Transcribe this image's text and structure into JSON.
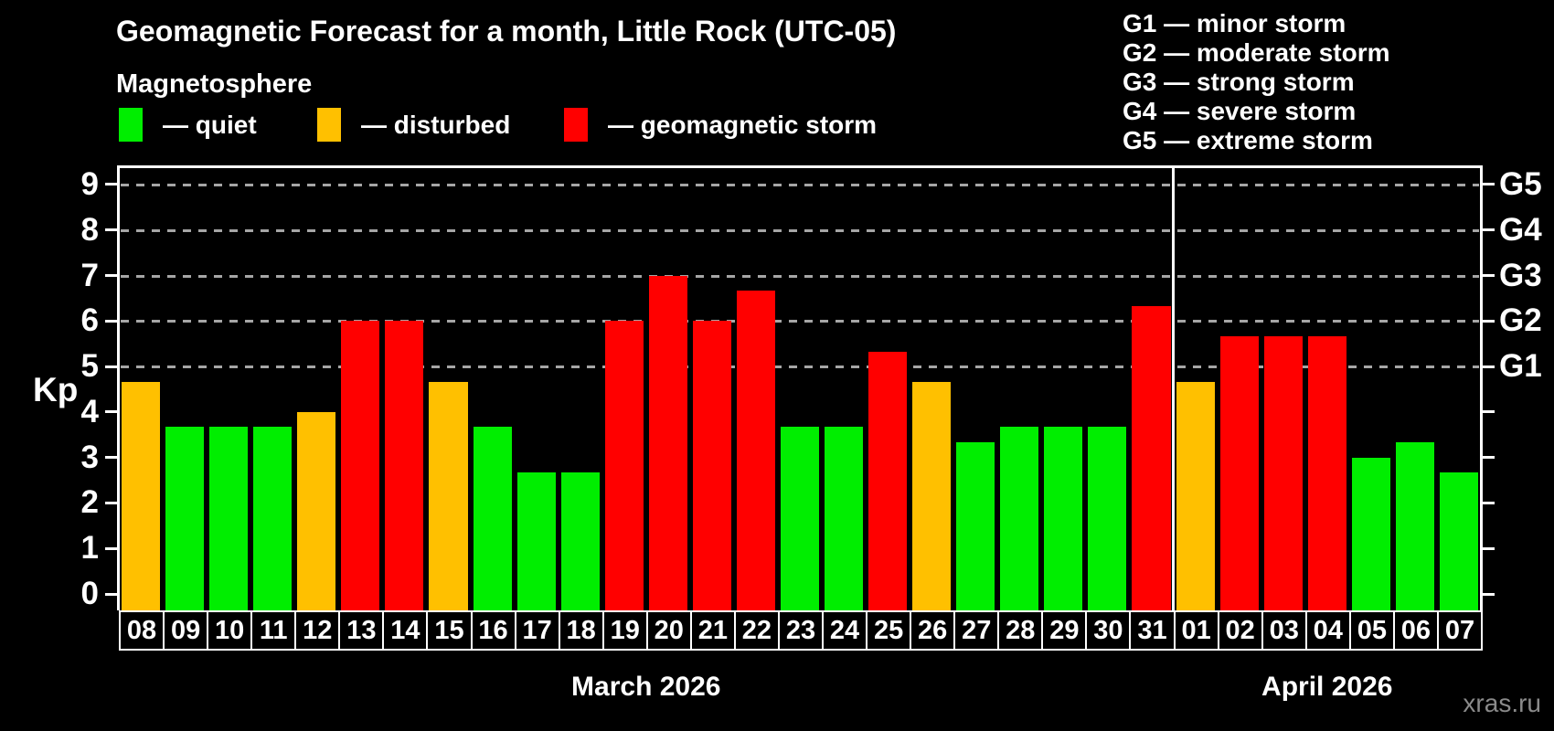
{
  "header": {
    "title": "Geomagnetic Forecast for a month, Little Rock (UTC-05)",
    "subtitle": "Magnetosphere"
  },
  "legend": {
    "items": [
      {
        "key": "quiet",
        "label": "— quiet",
        "color": "#00ee00",
        "x": 130
      },
      {
        "key": "disturbed",
        "label": "— disturbed",
        "color": "#ffc000",
        "x": 347
      },
      {
        "key": "storm",
        "label": "— geomagnetic storm",
        "color": "#ff0000",
        "x": 617
      }
    ]
  },
  "g_scale_legend": {
    "lines": [
      "G1 — minor storm",
      "G2 — moderate storm",
      "G3 — strong storm",
      "G4 — severe storm",
      "G5 — extreme storm"
    ]
  },
  "axes": {
    "y_label": "Kp",
    "y_ticks": [
      "0",
      "1",
      "2",
      "3",
      "4",
      "5",
      "6",
      "7",
      "8",
      "9"
    ],
    "g_labels": [
      {
        "kp": 5,
        "label": "G1"
      },
      {
        "kp": 6,
        "label": "G2"
      },
      {
        "kp": 7,
        "label": "G3"
      },
      {
        "kp": 8,
        "label": "G4"
      },
      {
        "kp": 9,
        "label": "G5"
      }
    ]
  },
  "months": [
    {
      "label": "March 2026",
      "days": 24
    },
    {
      "label": "April 2026",
      "days": 7
    }
  ],
  "watermark": "xras.ru",
  "chart_data": {
    "type": "bar",
    "title": "Geomagnetic Forecast for a month, Little Rock (UTC-05)",
    "ylabel": "Kp",
    "ylim": [
      0,
      9
    ],
    "gridlines_at": [
      5,
      6,
      7,
      8,
      9
    ],
    "grid": "dashed horizontal at storm levels only",
    "legend_position": "top-left",
    "categories": [
      "08",
      "09",
      "10",
      "11",
      "12",
      "13",
      "14",
      "15",
      "16",
      "17",
      "18",
      "19",
      "20",
      "21",
      "22",
      "23",
      "24",
      "25",
      "26",
      "27",
      "28",
      "29",
      "30",
      "31",
      "01",
      "02",
      "03",
      "04",
      "05",
      "06",
      "07"
    ],
    "values": [
      4.67,
      3.67,
      3.67,
      3.67,
      4.0,
      6.0,
      6.0,
      4.67,
      3.67,
      2.67,
      2.67,
      6.0,
      7.0,
      6.0,
      6.67,
      3.67,
      3.67,
      5.33,
      4.67,
      3.33,
      3.67,
      3.67,
      3.67,
      6.33,
      4.67,
      5.67,
      5.67,
      5.67,
      3.0,
      3.33,
      2.67
    ],
    "statuses": [
      "disturbed",
      "quiet",
      "quiet",
      "quiet",
      "disturbed",
      "storm",
      "storm",
      "disturbed",
      "quiet",
      "quiet",
      "quiet",
      "storm",
      "storm",
      "storm",
      "storm",
      "quiet",
      "quiet",
      "storm",
      "disturbed",
      "quiet",
      "quiet",
      "quiet",
      "quiet",
      "storm",
      "disturbed",
      "storm",
      "storm",
      "storm",
      "quiet",
      "quiet",
      "quiet"
    ],
    "colors": {
      "quiet": "#00ee00",
      "disturbed": "#ffc000",
      "storm": "#ff0000"
    }
  }
}
